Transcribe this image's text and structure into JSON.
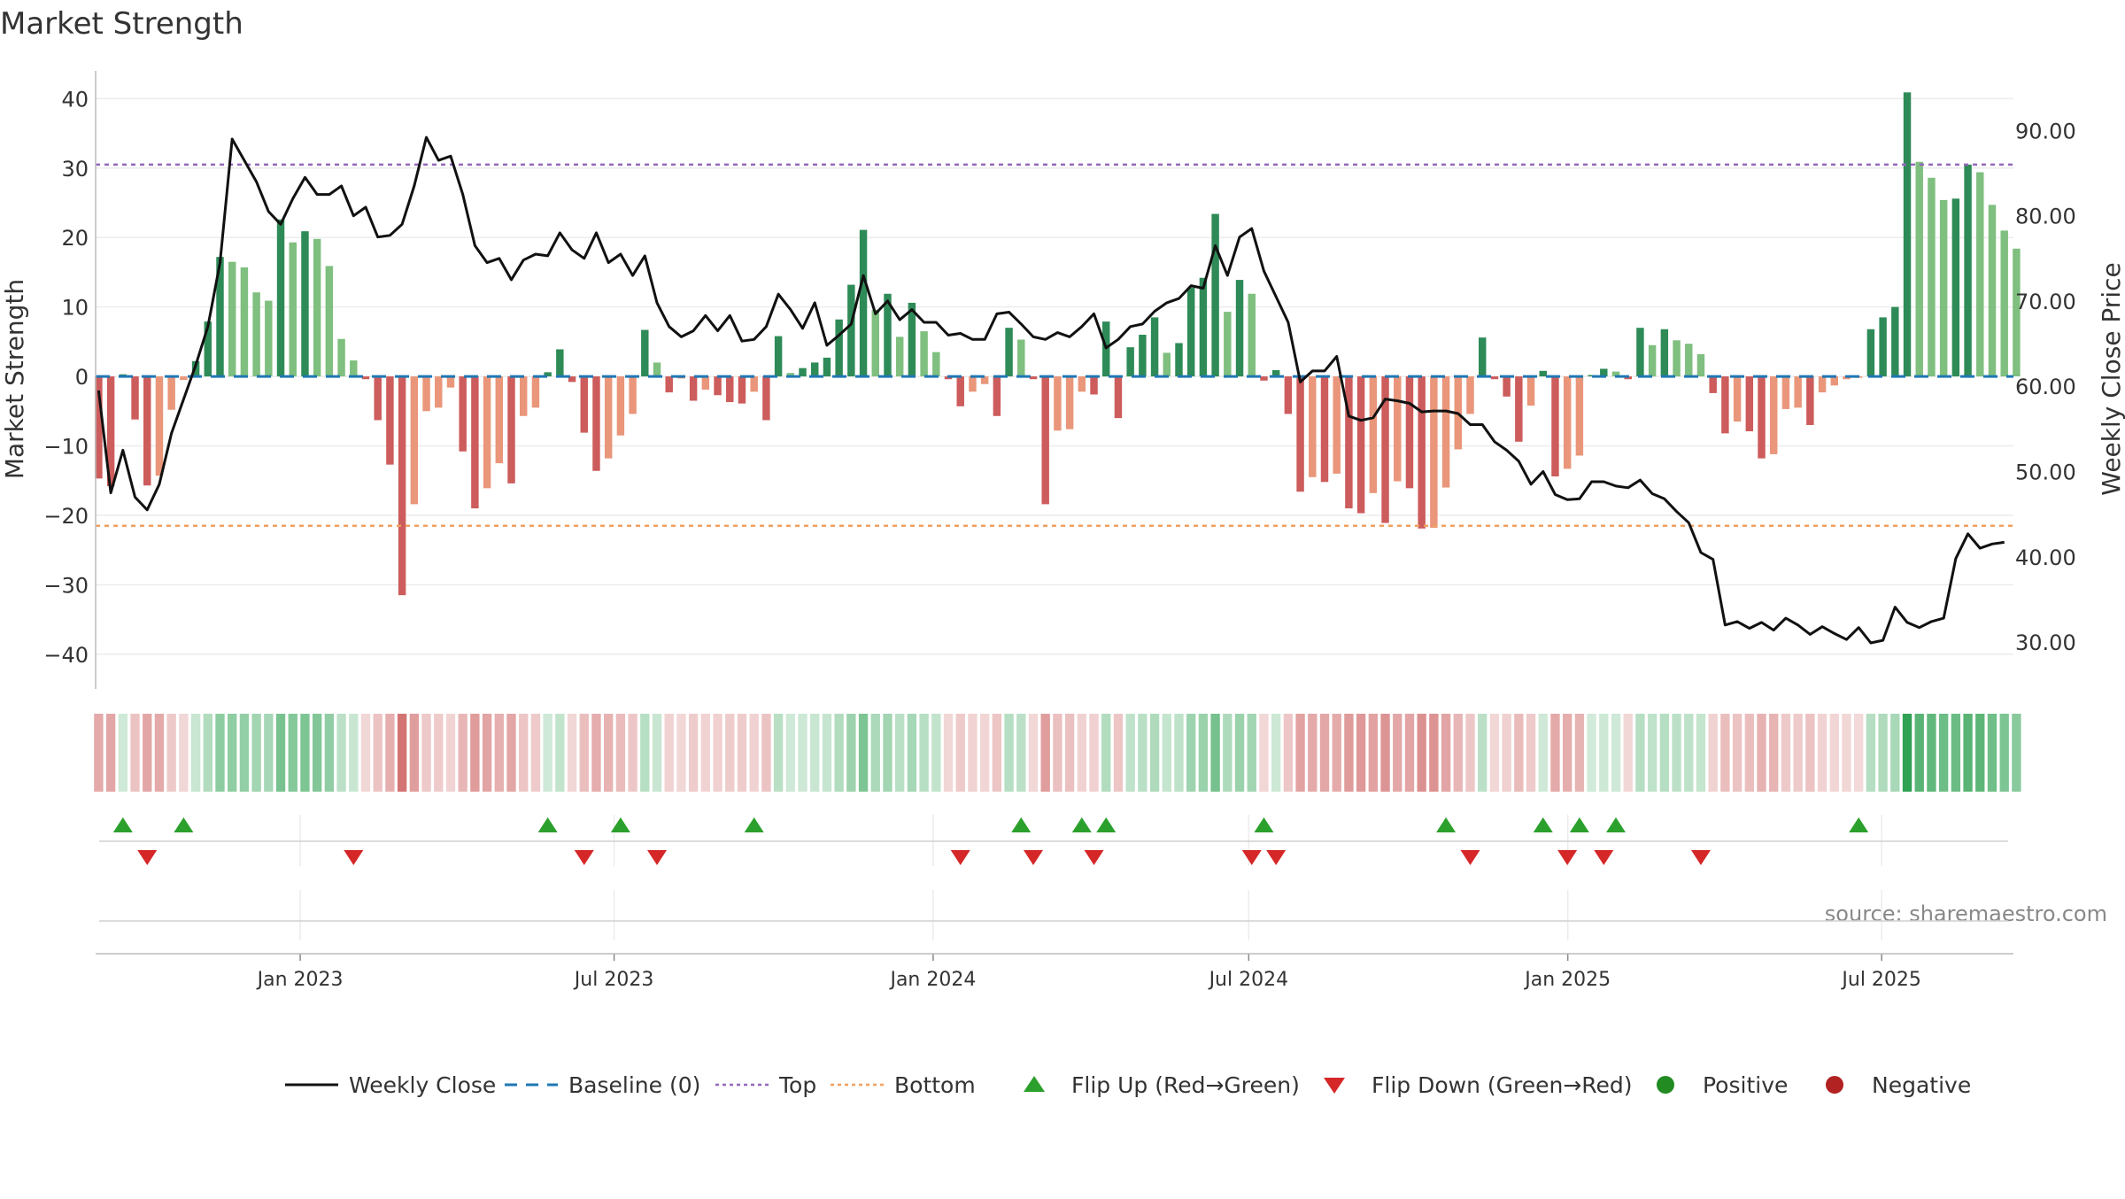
{
  "chart_data": {
    "type": "bar",
    "title": "Market Strength",
    "ylabel": "Market Strength",
    "y2label": "Weekly Close Price",
    "source": "source: sharemaestro.com",
    "ylim": [
      -45,
      44
    ],
    "y2lim": [
      24.5,
      97
    ],
    "yticks": [
      -40,
      -30,
      -20,
      -10,
      0,
      10,
      20,
      30,
      40
    ],
    "y2ticks": [
      "30.00",
      "40.00",
      "50.00",
      "60.00",
      "70.00",
      "80.00",
      "90.00"
    ],
    "x_start": "2022-09-05",
    "x_end": "2025-09-15",
    "xticks": [
      {
        "date": "2023-01-01",
        "label": "Jan 2023"
      },
      {
        "date": "2023-07-01",
        "label": "Jul 2023"
      },
      {
        "date": "2024-01-01",
        "label": "Jan 2024"
      },
      {
        "date": "2024-07-01",
        "label": "Jul 2024"
      },
      {
        "date": "2025-01-01",
        "label": "Jan 2025"
      },
      {
        "date": "2025-07-01",
        "label": "Jul 2025"
      }
    ],
    "top_line": 30.5,
    "bottom_line": -21.5,
    "baseline": 0,
    "colors": {
      "strong_up": "#2e8b57",
      "weak_up": "#7fbf7f",
      "strong_down": "#cd5c5c",
      "weak_down": "#e9967a",
      "price_line": "#111111",
      "top": "#9467bd",
      "bottom": "#f0a060",
      "baseline": "#1f77b4",
      "flip_up": "#2ca02c",
      "flip_down": "#d62728",
      "positive": "#228b22",
      "negative": "#b22222"
    },
    "series": [
      {
        "name": "Market Strength",
        "x": [
          "2022-09-05",
          "2022-09-12",
          "2022-09-19",
          "2022-09-26",
          "2022-10-03",
          "2022-10-10",
          "2022-10-17",
          "2022-10-24",
          "2022-10-31",
          "2022-11-07",
          "2022-11-14",
          "2022-11-21",
          "2022-11-28",
          "2022-12-05",
          "2022-12-12",
          "2022-12-19",
          "2022-12-26",
          "2023-01-02",
          "2023-01-09",
          "2023-01-16",
          "2023-01-23",
          "2023-01-30",
          "2023-02-06",
          "2023-02-13",
          "2023-02-20",
          "2023-02-27",
          "2023-03-06",
          "2023-03-13",
          "2023-03-20",
          "2023-03-27",
          "2023-04-03",
          "2023-04-10",
          "2023-04-17",
          "2023-04-24",
          "2023-05-01",
          "2023-05-08",
          "2023-05-15",
          "2023-05-22",
          "2023-05-29",
          "2023-06-05",
          "2023-06-12",
          "2023-06-19",
          "2023-06-26",
          "2023-07-03",
          "2023-07-10",
          "2023-07-17",
          "2023-07-24",
          "2023-07-31",
          "2023-08-07",
          "2023-08-14",
          "2023-08-21",
          "2023-08-28",
          "2023-09-04",
          "2023-09-11",
          "2023-09-18",
          "2023-09-25",
          "2023-10-02",
          "2023-10-09",
          "2023-10-16",
          "2023-10-23",
          "2023-10-30",
          "2023-11-06",
          "2023-11-13",
          "2023-11-20",
          "2023-11-27",
          "2023-12-04",
          "2023-12-11",
          "2023-12-18",
          "2023-12-25",
          "2024-01-01",
          "2024-01-08",
          "2024-01-15",
          "2024-01-22",
          "2024-01-29",
          "2024-02-05",
          "2024-02-12",
          "2024-02-19",
          "2024-02-26",
          "2024-03-04",
          "2024-03-11",
          "2024-03-18",
          "2024-03-25",
          "2024-04-01",
          "2024-04-08",
          "2024-04-15",
          "2024-04-22",
          "2024-04-29",
          "2024-05-06",
          "2024-05-13",
          "2024-05-20",
          "2024-05-27",
          "2024-06-03",
          "2024-06-10",
          "2024-06-17",
          "2024-06-24",
          "2024-07-01",
          "2024-07-08",
          "2024-07-15",
          "2024-07-22",
          "2024-07-29",
          "2024-08-05",
          "2024-08-12",
          "2024-08-19",
          "2024-08-26",
          "2024-09-02",
          "2024-09-09",
          "2024-09-16",
          "2024-09-23",
          "2024-09-30",
          "2024-10-07",
          "2024-10-14",
          "2024-10-21",
          "2024-10-28",
          "2024-11-04",
          "2024-11-11",
          "2024-11-18",
          "2024-11-25",
          "2024-12-02",
          "2024-12-09",
          "2024-12-16",
          "2024-12-23",
          "2024-12-30",
          "2025-01-06",
          "2025-01-13",
          "2025-01-20",
          "2025-01-27",
          "2025-02-03",
          "2025-02-10",
          "2025-02-17",
          "2025-02-24",
          "2025-03-03",
          "2025-03-10",
          "2025-03-17",
          "2025-03-24",
          "2025-03-31",
          "2025-04-07",
          "2025-04-14",
          "2025-04-21",
          "2025-04-28",
          "2025-05-05",
          "2025-05-12",
          "2025-05-19",
          "2025-05-26",
          "2025-06-02",
          "2025-06-09",
          "2025-06-16",
          "2025-06-23",
          "2025-06-30",
          "2025-07-07",
          "2025-07-14",
          "2025-07-21",
          "2025-07-28",
          "2025-08-04",
          "2025-08-11",
          "2025-08-18",
          "2025-08-25",
          "2025-09-01",
          "2025-09-08",
          "2025-09-15"
        ],
        "values": [
          -14.7,
          -15.8,
          0.3,
          -6.2,
          -15.7,
          -14.3,
          -4.8,
          -0.5,
          2.2,
          7.9,
          17.2,
          16.5,
          15.7,
          12.1,
          10.9,
          22.6,
          19.3,
          20.9,
          19.8,
          15.9,
          5.4,
          2.3,
          -0.4,
          -6.3,
          -12.7,
          -31.5,
          -18.4,
          -5.0,
          -4.5,
          -1.6,
          -10.8,
          -19.0,
          -16.1,
          -12.5,
          -15.4,
          -5.7,
          -4.5,
          0.6,
          3.9,
          -0.8,
          -8.1,
          -13.6,
          -11.8,
          -8.5,
          -5.4,
          6.7,
          2.0,
          -2.3,
          -0.3,
          -3.5,
          -1.9,
          -2.7,
          -3.7,
          -3.9,
          -2.2,
          -6.3,
          5.8,
          0.5,
          1.2,
          2.0,
          2.7,
          8.2,
          13.2,
          21.1,
          9.6,
          11.9,
          5.7,
          10.6,
          6.5,
          3.5,
          -0.4,
          -4.3,
          -2.2,
          -1.1,
          -5.7,
          7.0,
          5.3,
          -0.4,
          -18.4,
          -7.8,
          -7.6,
          -2.2,
          -2.6,
          7.9,
          -6.0,
          4.2,
          6.0,
          8.5,
          3.4,
          4.8,
          12.8,
          14.2,
          23.4,
          9.3,
          13.9,
          11.9,
          -0.6,
          0.9,
          -5.4,
          -16.6,
          -14.5,
          -15.2,
          -14.0,
          -19.0,
          -19.7,
          -16.8,
          -21.1,
          -15.1,
          -16.1,
          -21.9,
          -21.8,
          -16.0,
          -10.5,
          -5.4,
          5.6,
          -0.4,
          -2.9,
          -9.4,
          -4.2,
          0.8,
          -14.4,
          -13.3,
          -11.4,
          0.2,
          1.1,
          0.7,
          -0.4,
          7.0,
          4.5,
          6.8,
          5.2,
          4.7,
          3.2,
          -2.4,
          -8.2,
          -6.5,
          -7.9,
          -11.8,
          -11.2,
          -4.7,
          -4.5,
          -7.0,
          -2.3,
          -1.3,
          -0.4,
          -0.2,
          6.8,
          8.5,
          10.0,
          40.9,
          30.9,
          28.6,
          25.4,
          25.6,
          30.5,
          29.4,
          24.7,
          21.0,
          18.4
        ],
        "price": [
          59.5,
          47.5,
          52.5,
          47.0,
          45.5,
          48.5,
          54.5,
          58.5,
          62.5,
          67.0,
          74.5,
          89.0,
          86.5,
          84.0,
          80.5,
          79.0,
          82.0,
          84.5,
          82.5,
          82.5,
          83.5,
          80.0,
          81.0,
          77.5,
          77.7,
          79.0,
          83.5,
          89.2,
          86.5,
          87.0,
          82.5,
          76.5,
          74.5,
          75.0,
          72.5,
          74.8,
          75.5,
          75.3,
          78.0,
          76.0,
          75.0,
          78.0,
          74.5,
          75.5,
          73.0,
          75.3,
          69.8,
          67.0,
          65.8,
          66.5,
          68.3,
          66.5,
          68.3,
          65.3,
          65.5,
          67.0,
          70.8,
          69.0,
          66.8,
          69.8,
          64.8,
          66.0,
          67.3,
          73.0,
          68.5,
          70.0,
          67.8,
          69.0,
          67.5,
          67.5,
          66.0,
          66.2,
          65.5,
          65.5,
          68.5,
          68.7,
          67.3,
          65.8,
          65.5,
          66.3,
          65.8,
          67.0,
          68.5,
          64.5,
          65.5,
          67.0,
          67.3,
          68.8,
          69.8,
          70.3,
          71.8,
          71.5,
          76.5,
          73.0,
          77.5,
          78.5,
          73.5,
          70.5,
          67.5,
          60.5,
          61.8,
          61.8,
          63.5,
          56.5,
          56.0,
          56.3,
          58.5,
          58.3,
          58.0,
          57.0,
          57.1,
          57.1,
          56.8,
          55.5,
          55.5,
          53.5,
          52.5,
          51.2,
          48.5,
          50.0,
          47.3,
          46.7,
          46.8,
          48.8,
          48.8,
          48.3,
          48.1,
          49.0,
          47.4,
          46.8,
          45.3,
          44.0,
          40.5,
          39.7,
          32.0,
          32.4,
          31.6,
          32.3,
          31.4,
          32.8,
          32.0,
          30.9,
          31.8,
          31.0,
          30.3,
          31.7,
          29.9,
          30.2,
          34.1,
          32.3,
          31.7,
          32.4,
          32.8,
          39.8,
          42.7,
          41.0,
          41.5,
          41.7
        ]
      }
    ],
    "flip_up": [
      "2022-09-19",
      "2022-10-24",
      "2023-05-22",
      "2023-07-03",
      "2023-09-18",
      "2024-02-19",
      "2024-03-25",
      "2024-04-08",
      "2024-07-08",
      "2024-10-21",
      "2024-12-16",
      "2025-01-06",
      "2025-01-27",
      "2025-06-16"
    ],
    "flip_down": [
      "2022-10-03",
      "2023-01-30",
      "2023-06-12",
      "2023-07-24",
      "2024-01-15",
      "2024-02-26",
      "2024-04-01",
      "2024-07-01",
      "2024-07-15",
      "2024-11-04",
      "2024-12-30",
      "2025-01-20",
      "2025-03-17"
    ],
    "legend": [
      {
        "label": "Weekly Close",
        "kind": "line"
      },
      {
        "label": "Baseline (0)",
        "kind": "dash"
      },
      {
        "label": "Top",
        "kind": "dot-purple"
      },
      {
        "label": "Bottom",
        "kind": "dot-orange"
      },
      {
        "label": "Flip Up (Red→Green)",
        "kind": "tri-up"
      },
      {
        "label": "Flip Down (Green→Red)",
        "kind": "tri-down"
      },
      {
        "label": "Positive",
        "kind": "dot-green"
      },
      {
        "label": "Negative",
        "kind": "dot-red"
      }
    ]
  }
}
